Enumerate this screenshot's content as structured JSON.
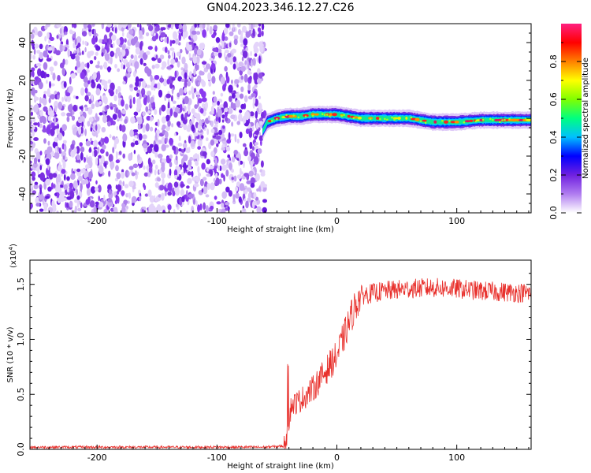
{
  "page": {
    "title": "GN04.2023.346.12.27.C26"
  },
  "chart_data": [
    {
      "type": "heatmap",
      "xlabel": "Height of straight line (km)",
      "ylabel": "Frequency (Hz)",
      "xlim": [
        -256,
        162
      ],
      "ylim": [
        -50,
        50
      ],
      "xticks": [
        -200,
        -100,
        0,
        100
      ],
      "yticks": [
        -40,
        -20,
        0,
        20,
        40
      ],
      "noise_region": {
        "x": [
          -256,
          -60
        ],
        "y": [
          -50,
          50
        ]
      },
      "ridge": {
        "x": [
          -62,
          -58,
          -50,
          -40,
          -30,
          -20,
          -10,
          0,
          10,
          20,
          40,
          60,
          80,
          100,
          120,
          140,
          162
        ],
        "freq": [
          -7,
          -2,
          0,
          1,
          1,
          2,
          2,
          2,
          1,
          0,
          0,
          0,
          -2,
          -2,
          -1,
          -1,
          -1
        ]
      },
      "colorbar": {
        "label": "Normalized spectral amplitude",
        "ticks": [
          "0.0",
          "0.2",
          "0.4",
          "0.6",
          "0.8"
        ],
        "range": [
          0,
          1
        ],
        "colors": [
          "#ffffff",
          "#b07cf0",
          "#7020e0",
          "#0000ff",
          "#00c0ff",
          "#00ff80",
          "#80ff00",
          "#ffff00",
          "#ff8000",
          "#ff0000",
          "#ff2080"
        ]
      }
    },
    {
      "type": "line",
      "xlabel": "Height of straight line (km)",
      "ylabel": "SNR (10 * v/v)",
      "y_multiplier": "(x10",
      "y_exponent": "4",
      "xlim": [
        -256,
        162
      ],
      "ylim": [
        0,
        1.72
      ],
      "xticks": [
        -200,
        -100,
        0,
        100
      ],
      "yticks": [
        "0.0",
        "0.5",
        "1.0",
        "1.5"
      ],
      "ytick_values": [
        0,
        0.5,
        1.0,
        1.5
      ],
      "series": [
        {
          "color": "#e8302c",
          "x": [
            -256,
            -200,
            -150,
            -100,
            -60,
            -44,
            -42,
            -40,
            -38,
            -30,
            -20,
            -10,
            -5,
            0,
            5,
            10,
            15,
            20,
            30,
            40,
            60,
            80,
            100,
            120,
            140,
            162
          ],
          "y": [
            0.02,
            0.02,
            0.02,
            0.02,
            0.02,
            0.03,
            0.12,
            0.25,
            0.4,
            0.45,
            0.55,
            0.7,
            0.78,
            0.85,
            1.0,
            1.15,
            1.3,
            1.4,
            1.42,
            1.44,
            1.46,
            1.47,
            1.46,
            1.44,
            1.43,
            1.42
          ]
        }
      ]
    }
  ]
}
